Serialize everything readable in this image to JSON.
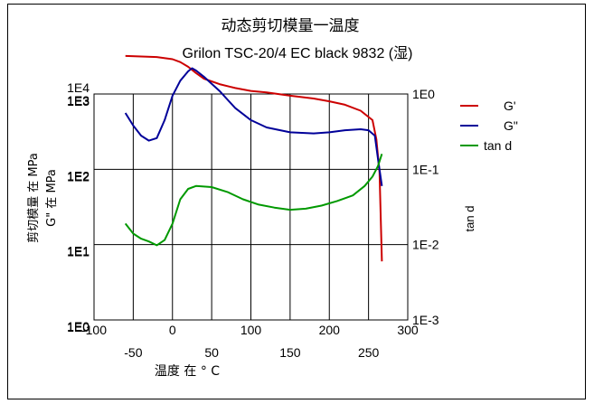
{
  "chart_data": {
    "type": "line",
    "title": "动态剪切模量一温度",
    "subtitle": "Grilon TSC-20/4 EC black 9832 (湿)",
    "xlabel": "温度 在 ° C",
    "ylabel_left_outer": "剪切模量 在   MPa",
    "ylabel_left_inner": "G\" 在   MPa",
    "ylabel_right": "tan d",
    "xlim": [
      -100,
      300
    ],
    "x_ticks_top": [
      "-100",
      "0",
      "100",
      "200",
      "300"
    ],
    "x_ticks_bottom": [
      "-50",
      "50",
      "150",
      "250"
    ],
    "y_ticks_outer": [
      "1E4",
      "1E3",
      "1E2",
      "1E1",
      "1E0"
    ],
    "y_ticks_inner": [
      "1E3",
      "1E2",
      "1E1",
      "1E0"
    ],
    "y_ticks_right": [
      "1E0",
      "1E-1",
      "1E-2",
      "1E-3"
    ],
    "grid": true,
    "legend_position": "right",
    "series": [
      {
        "name": "G'",
        "color": "#cc0000",
        "axis": "G' (MPa)",
        "points": [
          [
            -60,
            3200
          ],
          [
            -40,
            3150
          ],
          [
            -20,
            3100
          ],
          [
            0,
            2900
          ],
          [
            10,
            2650
          ],
          [
            20,
            2300
          ],
          [
            30,
            1900
          ],
          [
            40,
            1600
          ],
          [
            60,
            1350
          ],
          [
            80,
            1200
          ],
          [
            100,
            1100
          ],
          [
            120,
            1050
          ],
          [
            150,
            950
          ],
          [
            180,
            870
          ],
          [
            200,
            800
          ],
          [
            220,
            720
          ],
          [
            240,
            600
          ],
          [
            255,
            450
          ],
          [
            260,
            250
          ],
          [
            264,
            90
          ],
          [
            267,
            6
          ]
        ]
      },
      {
        "name": "G\"",
        "color": "#000099",
        "axis": "G\" (MPa)",
        "points": [
          [
            -60,
            56
          ],
          [
            -50,
            38
          ],
          [
            -40,
            28
          ],
          [
            -30,
            24
          ],
          [
            -20,
            26
          ],
          [
            -10,
            45
          ],
          [
            0,
            95
          ],
          [
            10,
            150
          ],
          [
            20,
            200
          ],
          [
            25,
            220
          ],
          [
            30,
            205
          ],
          [
            40,
            170
          ],
          [
            60,
            110
          ],
          [
            80,
            65
          ],
          [
            100,
            45
          ],
          [
            120,
            36
          ],
          [
            150,
            31
          ],
          [
            180,
            30
          ],
          [
            200,
            31
          ],
          [
            220,
            33
          ],
          [
            240,
            34
          ],
          [
            250,
            33
          ],
          [
            258,
            28
          ],
          [
            262,
            14
          ],
          [
            267,
            6
          ]
        ]
      },
      {
        "name": "tan d",
        "color": "#009900",
        "axis": "tan d",
        "points": [
          [
            -60,
            0.019
          ],
          [
            -50,
            0.014
          ],
          [
            -40,
            0.012
          ],
          [
            -30,
            0.011
          ],
          [
            -20,
            0.0098
          ],
          [
            -10,
            0.0115
          ],
          [
            0,
            0.019
          ],
          [
            10,
            0.04
          ],
          [
            20,
            0.055
          ],
          [
            30,
            0.06
          ],
          [
            50,
            0.058
          ],
          [
            70,
            0.05
          ],
          [
            90,
            0.04
          ],
          [
            110,
            0.034
          ],
          [
            130,
            0.031
          ],
          [
            150,
            0.029
          ],
          [
            170,
            0.03
          ],
          [
            190,
            0.033
          ],
          [
            210,
            0.038
          ],
          [
            230,
            0.045
          ],
          [
            245,
            0.06
          ],
          [
            255,
            0.08
          ],
          [
            262,
            0.11
          ],
          [
            267,
            0.16
          ]
        ]
      }
    ]
  }
}
